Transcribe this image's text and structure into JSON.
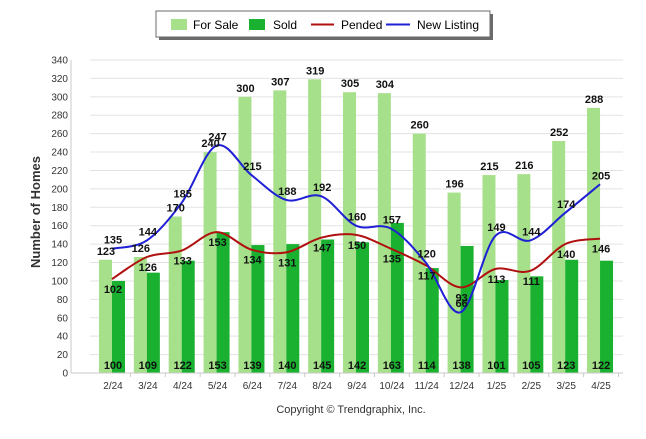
{
  "chart_data": {
    "type": "bar",
    "ylabel": "Number of Homes",
    "ylim": [
      0,
      340
    ],
    "ytick_step": 20,
    "grid": true,
    "legend_position": "top-center",
    "footer": "Copyright © Trendgraphix, Inc.",
    "categories": [
      "2/24",
      "3/24",
      "4/24",
      "5/24",
      "6/24",
      "7/24",
      "8/24",
      "9/24",
      "10/24",
      "11/24",
      "12/24",
      "1/25",
      "2/25",
      "3/25",
      "4/25"
    ],
    "series": [
      {
        "name": "For Sale",
        "kind": "bar",
        "color": "#a6e08a",
        "values": [
          123,
          126,
          170,
          240,
          300,
          307,
          319,
          305,
          304,
          260,
          196,
          215,
          216,
          252,
          288
        ]
      },
      {
        "name": "Sold",
        "kind": "bar",
        "color": "#19b12f",
        "values": [
          100,
          109,
          122,
          153,
          139,
          140,
          145,
          142,
          163,
          114,
          138,
          101,
          105,
          123,
          122
        ]
      },
      {
        "name": "Pended",
        "kind": "line",
        "color": "#b01010",
        "values": [
          102,
          126,
          133,
          153,
          134,
          131,
          147,
          150,
          135,
          117,
          93,
          113,
          111,
          140,
          146
        ]
      },
      {
        "name": "New Listing",
        "kind": "line",
        "color": "#1f1fd6",
        "values": [
          135,
          144,
          185,
          247,
          215,
          188,
          192,
          160,
          157,
          120,
          66,
          149,
          144,
          174,
          205
        ]
      }
    ]
  }
}
